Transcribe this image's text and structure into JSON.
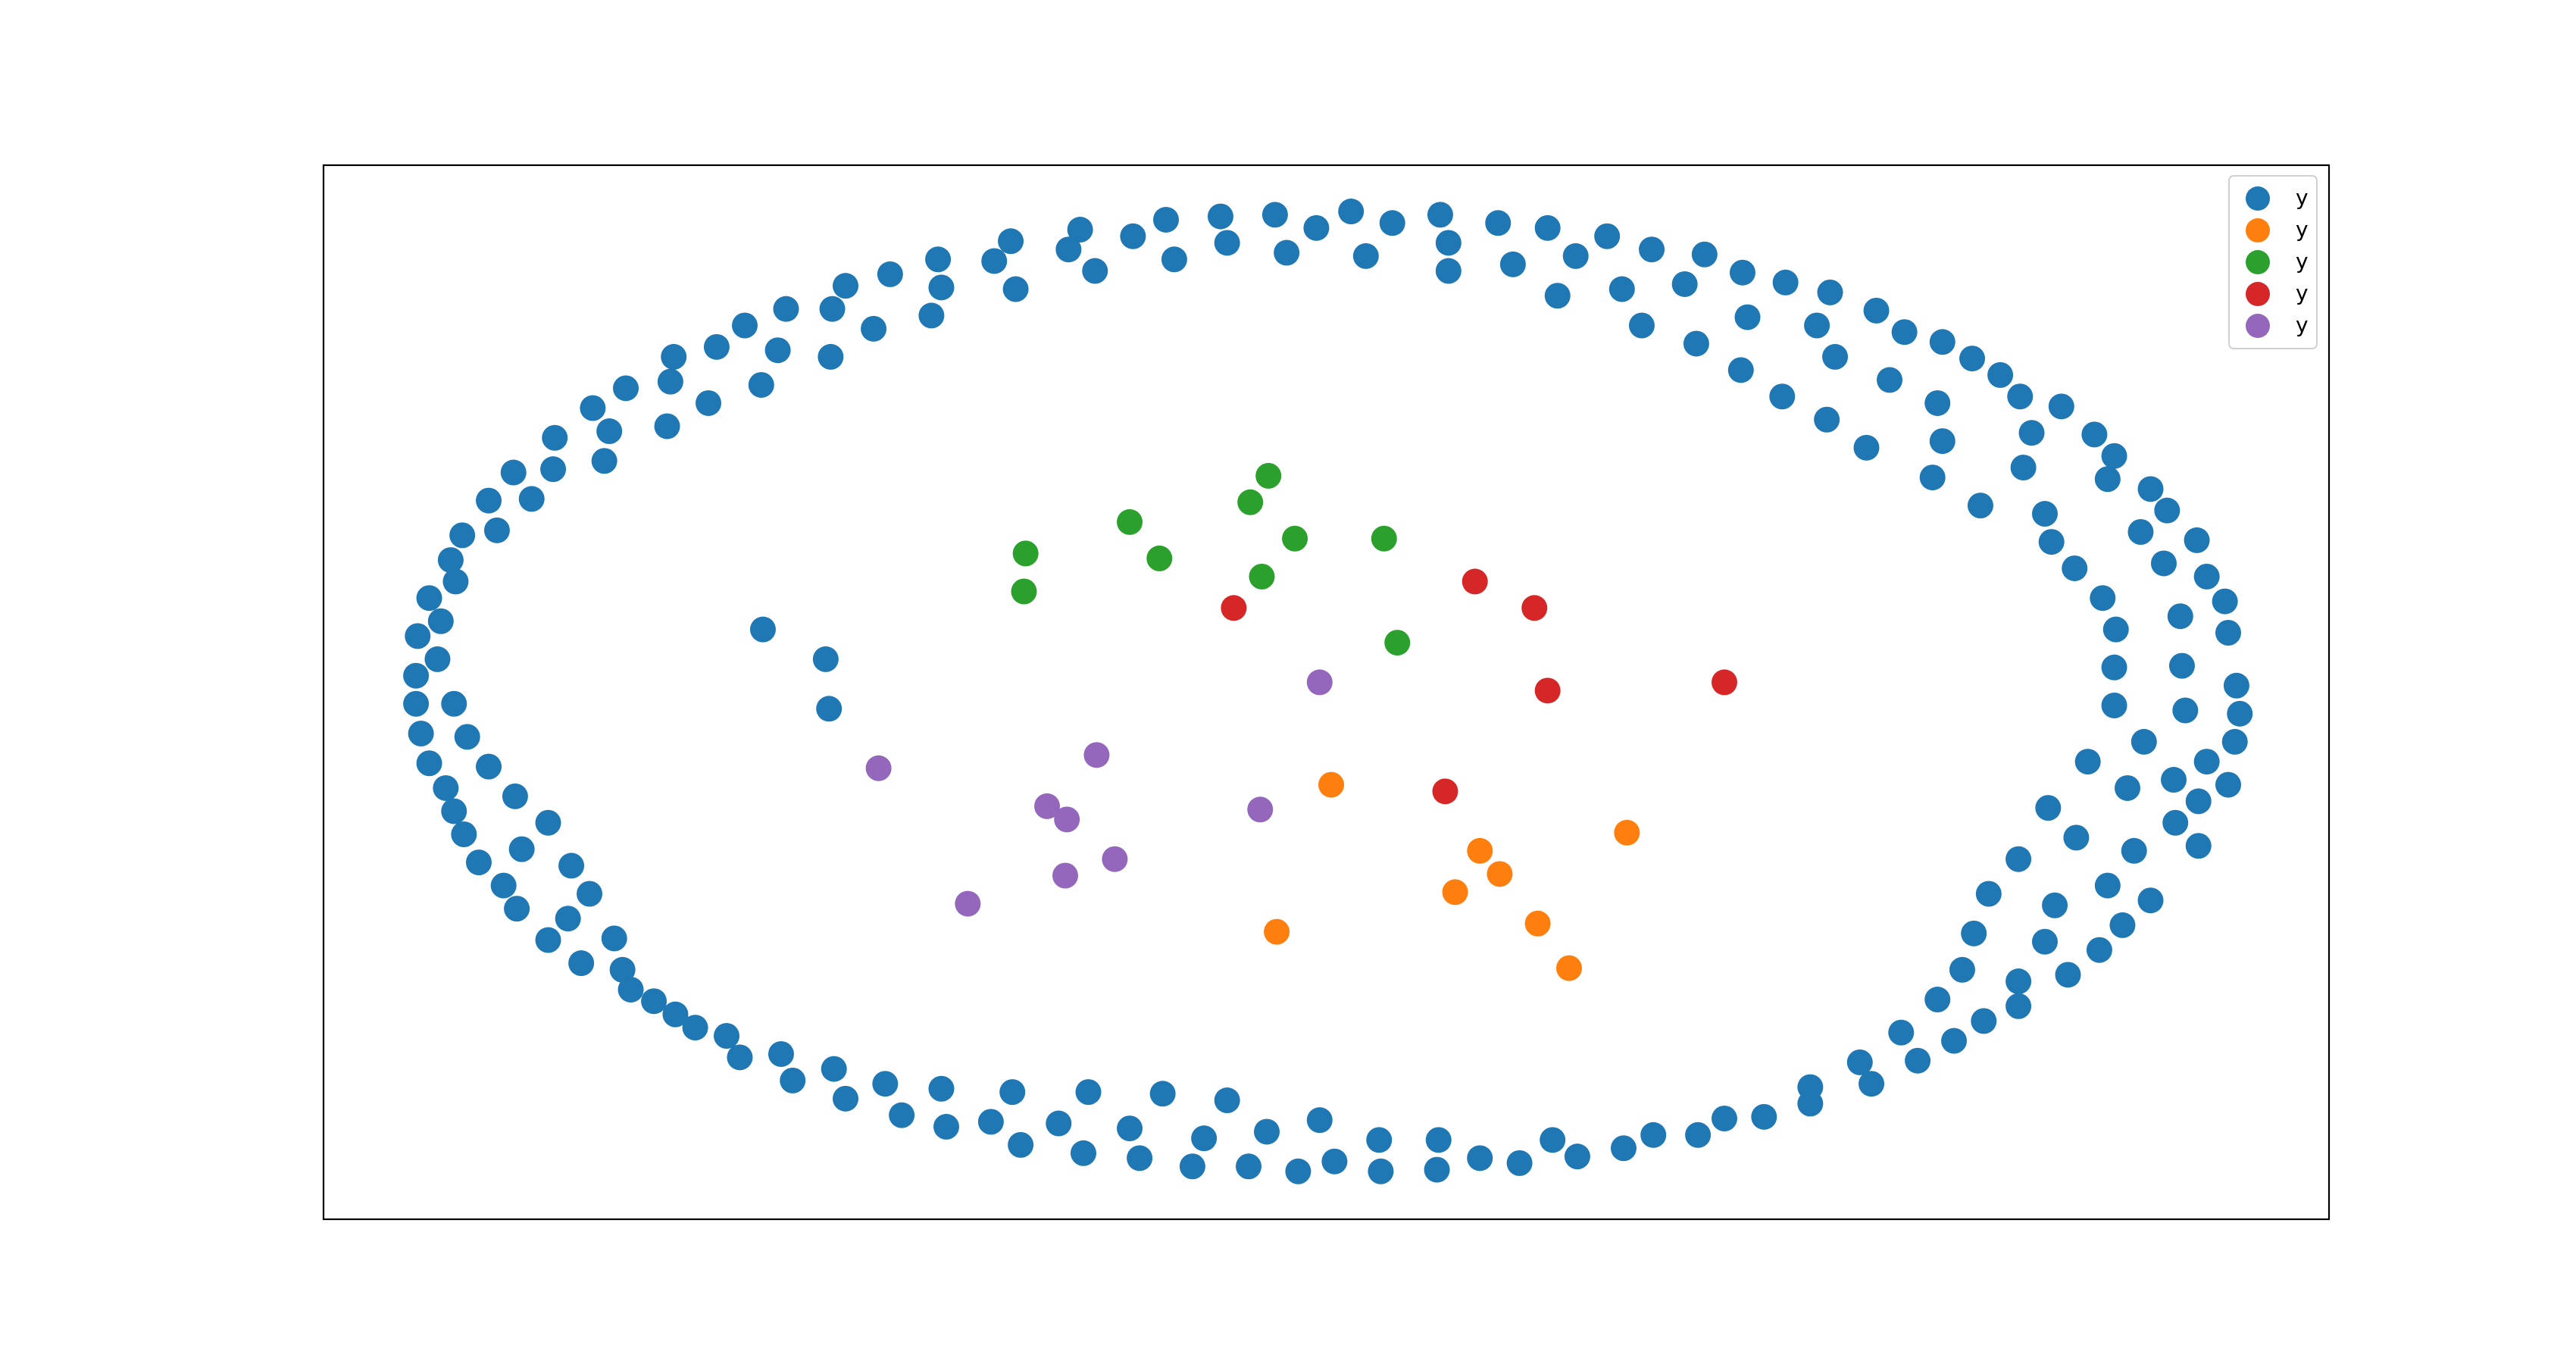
{
  "chart_data": {
    "type": "scatter",
    "xlim": [
      196,
      1410
    ],
    "ylim": [
      738,
      100
    ],
    "legend": "upper right",
    "series": [
      {
        "name": "y",
        "color": "#1f77b4",
        "x": [
          818,
          772,
          739,
          706,
          686,
          654,
          612,
          647,
          663,
          602,
          615,
          568,
          570,
          564,
          539,
          512,
          529,
          476,
          504,
          503,
          451,
          434,
          471,
          461,
          408,
          406,
          379,
          429,
          404,
          359,
          369,
          336,
          366,
          335,
          311,
          296,
          322,
          280,
          301,
          273,
          276,
          260,
          267,
          253,
          265,
          252,
          252,
          275,
          255,
          283,
          260,
          296,
          270,
          312,
          275,
          332,
          281,
          316,
          290,
          346,
          305,
          357,
          313,
          344,
          332,
          372,
          352,
          377,
          382,
          396,
          409,
          421,
          440,
          448,
          473,
          480,
          505,
          512,
          536,
          546,
          570,
          573,
          600,
          613,
          618,
          641,
          659,
          656,
          684,
          690,
          704,
          722,
          729,
          743,
          756,
          767,
          786,
          799,
          808,
          836,
          835,
          870,
          871,
          896,
          920,
          940,
          955,
          983,
          1001,
          1028,
          1044,
          1068,
          1096,
          1096,
          1126,
          1133,
          1151,
          1161,
          1173,
          1183,
          1188,
          1201,
          1195,
          1222,
          1222,
          1204,
          1238,
          1222,
          1244,
          1252,
          1271,
          1240,
          1257,
          1285,
          1276,
          1292,
          1302,
          1264,
          1288,
          1317,
          1331,
          1298,
          1331,
          1316,
          1336,
          1349,
          1353,
          1356,
          1280,
          1323,
          1354,
          1280,
          1321,
          1349,
          1281,
          1320,
          1347,
          1273,
          1256,
          1310,
          1336,
          1242,
          1296,
          1330,
          1238,
          1312,
          1302,
          1276,
          1225,
          1280,
          1199,
          1170,
          1176,
          1268,
          1230,
          1248,
          1223,
          1211,
          1173,
          1194,
          1144,
          1176,
          1130,
          1106,
          1153,
          1136,
          1111,
          1079,
          1100,
          1108,
          1081,
          1054,
          1058,
          1055,
          1027,
          1020,
          1032,
          1000,
          994,
          982,
          973,
          943,
          954,
          937,
          916,
          907,
          877,
          877,
          872,
          843,
          827,
          797,
          779,
          743,
          711,
          462,
          500,
          502
        ],
        "values": [
          128,
          130,
          131,
          133,
          143,
          139,
          146,
          151,
          164,
          158,
          175,
          157,
          174,
          191,
          166,
          173,
          199,
          187,
          187,
          216,
          197,
          210,
          212,
          233,
          216,
          231,
          235,
          244,
          258,
          247,
          261,
          265,
          279,
          284,
          286,
          303,
          302,
          324,
          321,
          339,
          352,
          362,
          376,
          385,
          399,
          409,
          426,
          426,
          444,
          446,
          462,
          464,
          477,
          482,
          491,
          498,
          505,
          514,
          522,
          524,
          536,
          541,
          550,
          556,
          569,
          568,
          583,
          587,
          599,
          606,
          614,
          622,
          627,
          640,
          638,
          654,
          647,
          665,
          656,
          675,
          659,
          682,
          679,
          661,
          693,
          680,
          661,
          698,
          683,
          701,
          662,
          706,
          689,
          666,
          706,
          685,
          709,
          678,
          703,
          709,
          690,
          708,
          690,
          701,
          704,
          690,
          700,
          695,
          687,
          687,
          677,
          676,
          668,
          658,
          643,
          656,
          625,
          642,
          605,
          630,
          587,
          618,
          565,
          609,
          594,
          541,
          570,
          520,
          548,
          590,
          575,
          489,
          507,
          560,
          536,
          515,
          545,
          461,
          477,
          498,
          512,
          449,
          485,
          472,
          461,
          475,
          449,
          432,
          427,
          430,
          415,
          404,
          403,
          383,
          381,
          373,
          364,
          362,
          344,
          341,
          349,
          328,
          322,
          327,
          311,
          309,
          296,
          290,
          283,
          276,
          306,
          289,
          267,
          263,
          262,
          246,
          240,
          227,
          244,
          217,
          230,
          207,
          271,
          254,
          201,
          188,
          216,
          240,
          197,
          177,
          171,
          224,
          192,
          165,
          208,
          172,
          154,
          151,
          197,
          175,
          143,
          179,
          155,
          138,
          160,
          135,
          164,
          147,
          130,
          135,
          155,
          138,
          153,
          147,
          157,
          381,
          399,
          429
        ]
      },
      {
        "name": "y",
        "color": "#ff7f0e",
        "x": [
          806,
          985,
          896,
          908,
          881,
          773,
          931,
          950
        ],
        "values": [
          475,
          504,
          515,
          529,
          540,
          564,
          559,
          586
        ]
      },
      {
        "name": "y",
        "color": "#2ca02c",
        "x": [
          768,
          757,
          684,
          621,
          702,
          784,
          838,
          764,
          620,
          846
        ],
        "values": [
          288,
          304,
          316,
          335,
          338,
          326,
          326,
          349,
          358,
          389
        ]
      },
      {
        "name": "y",
        "color": "#d62728",
        "x": [
          893,
          929,
          747,
          937,
          1044,
          875
        ],
        "values": [
          352,
          368,
          368,
          418,
          413,
          479
        ]
      },
      {
        "name": "y",
        "color": "#9467bd",
        "x": [
          799,
          664,
          532,
          634,
          646,
          763,
          675,
          645,
          586
        ],
        "values": [
          413,
          457,
          465,
          488,
          496,
          490,
          520,
          530,
          547
        ]
      }
    ]
  }
}
